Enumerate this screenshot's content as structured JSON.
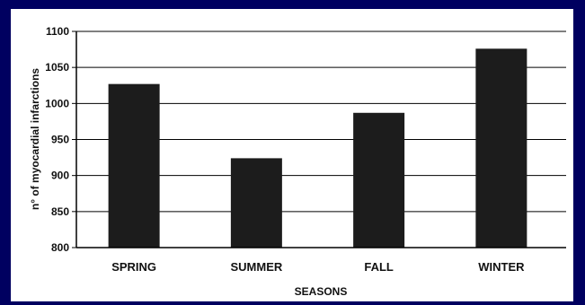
{
  "chart_data": {
    "type": "bar",
    "categories": [
      "SPRING",
      "SUMMER",
      "FALL",
      "WINTER"
    ],
    "values": [
      1027,
      924,
      987,
      1076
    ],
    "title": "",
    "xlabel": "SEASONS",
    "ylabel": "n° of myocardial infarctions",
    "ylim": [
      800,
      1100
    ],
    "yticks": [
      800,
      850,
      900,
      950,
      1000,
      1050,
      1100
    ],
    "grid": true,
    "legend": "none",
    "bar_color": "#1c1c1c"
  },
  "colors": {
    "background": "#000060",
    "panel": "#ffffff",
    "grid": "#000000"
  }
}
